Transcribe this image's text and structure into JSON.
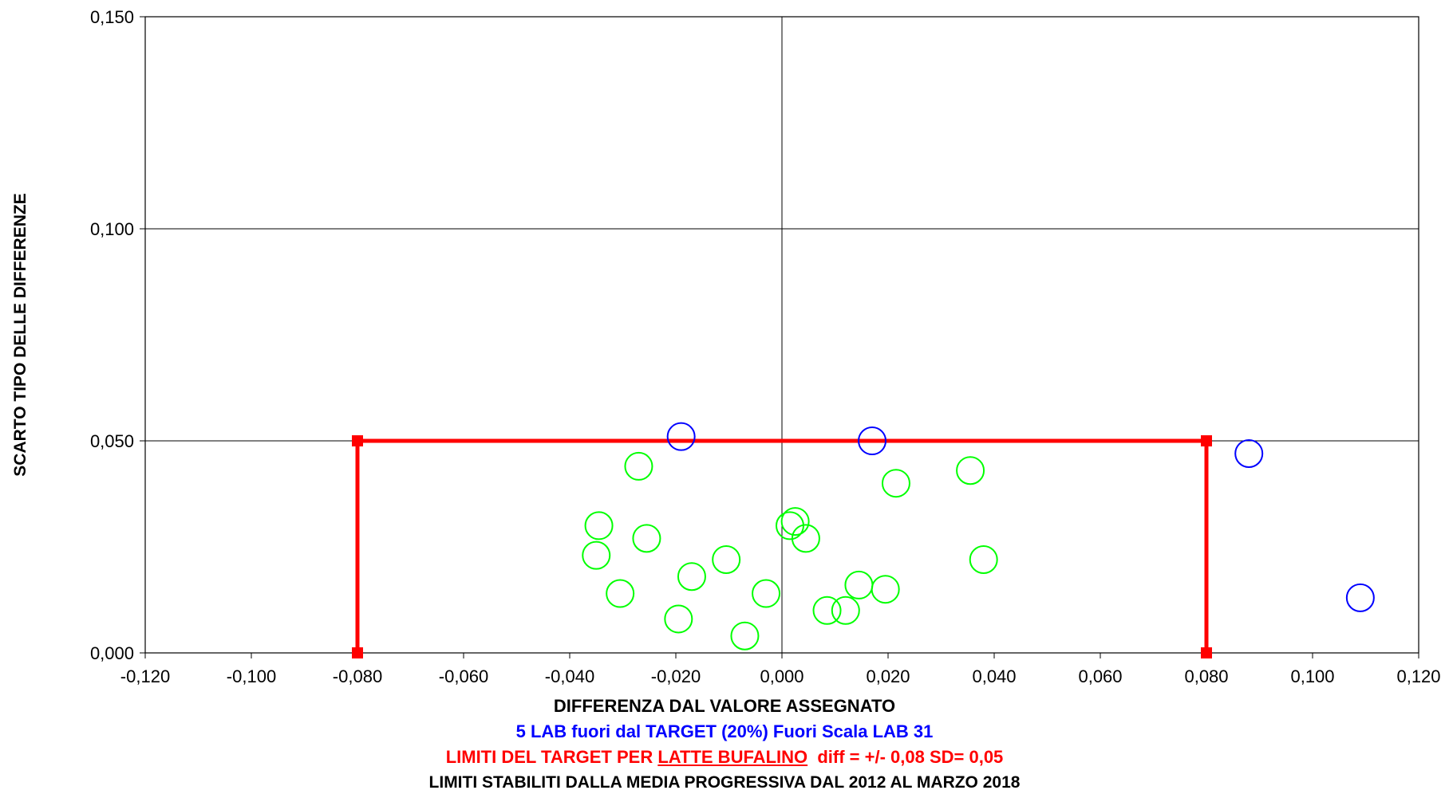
{
  "chart_data": {
    "type": "scatter",
    "xlim": [
      -0.12,
      0.12
    ],
    "ylim": [
      0,
      0.15
    ],
    "x_ticks": [
      "-0,120",
      "-0,100",
      "-0,080",
      "-0,060",
      "-0,040",
      "-0,020",
      "0,000",
      "0,020",
      "0,040",
      "0,060",
      "0,080",
      "0,100",
      "0,120"
    ],
    "x_tick_values": [
      -0.12,
      -0.1,
      -0.08,
      -0.06,
      -0.04,
      -0.02,
      0,
      0.02,
      0.04,
      0.06,
      0.08,
      0.1,
      0.12
    ],
    "y_ticks": [
      "0,000",
      "0,050",
      "0,100",
      "0,150"
    ],
    "y_tick_values": [
      0,
      0.05,
      0.1,
      0.15
    ],
    "ylabel": "SCARTO TIPO DELLE DIFFERENZE",
    "xlabel": "DIFFERENZA DAL VALORE ASSEGNATO",
    "grid": "horizontal at y ticks, vertical axis at x = 0",
    "colors": {
      "in_target": "#00ff00",
      "out_target": "#0000ff",
      "limits": "#ff0000"
    },
    "series": [
      {
        "color": "#00ff00",
        "points": [
          [
            -0.027,
            0.044
          ],
          [
            -0.0345,
            0.03
          ],
          [
            -0.0255,
            0.027
          ],
          [
            -0.035,
            0.023
          ],
          [
            -0.0305,
            0.014
          ],
          [
            -0.017,
            0.018
          ],
          [
            -0.0105,
            0.022
          ],
          [
            -0.0195,
            0.008
          ],
          [
            -0.007,
            0.004
          ],
          [
            -0.003,
            0.014
          ],
          [
            0.0015,
            0.03
          ],
          [
            0.0025,
            0.031
          ],
          [
            0.0045,
            0.027
          ],
          [
            0.0085,
            0.01
          ],
          [
            0.012,
            0.01
          ],
          [
            0.0145,
            0.016
          ],
          [
            0.0195,
            0.015
          ],
          [
            0.0215,
            0.04
          ],
          [
            0.0355,
            0.043
          ],
          [
            0.038,
            0.022
          ]
        ]
      },
      {
        "color": "#0000ff",
        "points": [
          [
            -0.019,
            0.051
          ],
          [
            0.017,
            0.05
          ],
          [
            0.088,
            0.047
          ],
          [
            0.109,
            0.013
          ]
        ]
      }
    ],
    "limits": {
      "color": "#ff0000",
      "points": [
        [
          -0.08,
          0
        ],
        [
          -0.08,
          0.05
        ],
        [
          0.08,
          0.05
        ],
        [
          0.08,
          0
        ]
      ]
    },
    "annotations": {
      "line1": "DIFFERENZA DAL VALORE ASSEGNATO",
      "line2": "5 LAB fuori dal TARGET (20%) Fuori Scala LAB 31",
      "line3_prefix": "LIMITI DEL TARGET PER ",
      "line3_underlined": "LATTE BUFALINO",
      "line3_suffix": "  diff = +/- 0,08 SD= 0,05",
      "line4": "LIMITI STABILITI DALLA MEDIA PROGRESSIVA  DAL 2012 AL MARZO 2018"
    }
  }
}
